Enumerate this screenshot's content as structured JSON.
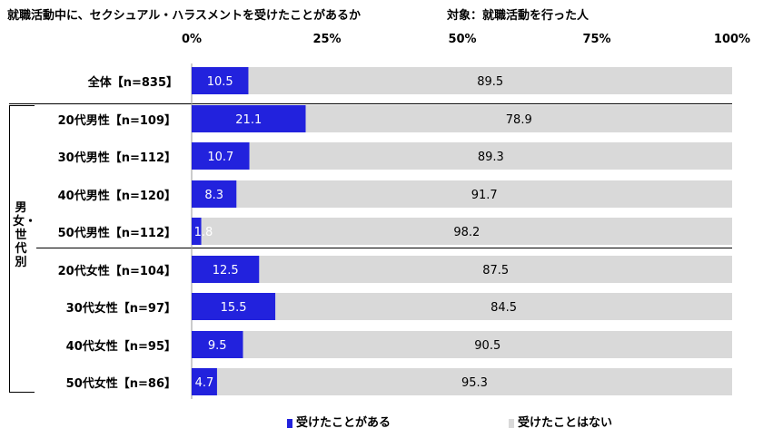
{
  "header": {
    "title": "就職活動中に、セクシュアル・ハラスメントを受けたことがあるか",
    "subject": "対象：就職活動を行った人"
  },
  "axis_ticks": [
    "0%",
    "25%",
    "50%",
    "75%",
    "100%"
  ],
  "group_label": "男女・世代別",
  "legend": {
    "yes": "受けたことがある",
    "no": "受けたことはない"
  },
  "colors": {
    "yes": "#2222dd",
    "no": "#d9d9d9"
  },
  "chart_data": {
    "type": "bar",
    "orientation": "horizontal",
    "stacked": true,
    "title": "就職活動中に、セクシュアル・ハラスメントを受けたことがあるか",
    "xlim": [
      0,
      100
    ],
    "categories": [
      "全体【n=835】",
      "20代男性【n=109】",
      "30代男性【n=112】",
      "40代男性【n=120】",
      "50代男性【n=112】",
      "20代女性【n=104】",
      "30代女性【n=97】",
      "40代女性【n=95】",
      "50代女性【n=86】"
    ],
    "series": [
      {
        "name": "受けたことがある",
        "values": [
          10.5,
          21.1,
          10.7,
          8.3,
          1.8,
          12.5,
          15.5,
          9.5,
          4.7
        ]
      },
      {
        "name": "受けたことはない",
        "values": [
          89.5,
          78.9,
          89.3,
          91.7,
          98.2,
          87.5,
          84.5,
          90.5,
          95.3
        ]
      }
    ],
    "legend_position": "bottom"
  }
}
